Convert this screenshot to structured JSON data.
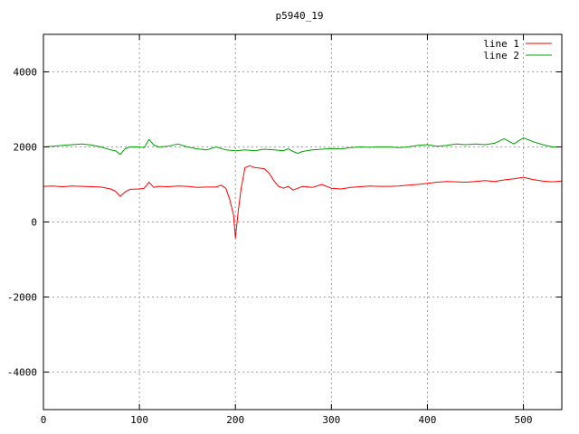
{
  "chart_data": {
    "type": "line",
    "title": "p5940_19",
    "xlabel": "",
    "ylabel": "",
    "xlim": [
      0,
      540
    ],
    "ylim": [
      -5000,
      5000
    ],
    "xticks": [
      0,
      100,
      200,
      300,
      400,
      500
    ],
    "yticks": [
      -4000,
      -2000,
      0,
      2000,
      4000
    ],
    "grid": true,
    "legend": "top-right",
    "series": [
      {
        "name": "line 1",
        "color": "#ff0000",
        "points": [
          [
            0,
            950
          ],
          [
            10,
            960
          ],
          [
            20,
            940
          ],
          [
            30,
            960
          ],
          [
            40,
            950
          ],
          [
            50,
            940
          ],
          [
            60,
            930
          ],
          [
            70,
            880
          ],
          [
            75,
            820
          ],
          [
            80,
            680
          ],
          [
            85,
            800
          ],
          [
            90,
            870
          ],
          [
            100,
            880
          ],
          [
            105,
            900
          ],
          [
            110,
            1060
          ],
          [
            115,
            920
          ],
          [
            120,
            950
          ],
          [
            130,
            940
          ],
          [
            140,
            960
          ],
          [
            150,
            950
          ],
          [
            160,
            920
          ],
          [
            170,
            930
          ],
          [
            180,
            930
          ],
          [
            185,
            980
          ],
          [
            190,
            900
          ],
          [
            194,
            600
          ],
          [
            198,
            200
          ],
          [
            200,
            -430
          ],
          [
            203,
            300
          ],
          [
            206,
            900
          ],
          [
            210,
            1450
          ],
          [
            215,
            1500
          ],
          [
            220,
            1450
          ],
          [
            230,
            1420
          ],
          [
            235,
            1300
          ],
          [
            240,
            1100
          ],
          [
            245,
            950
          ],
          [
            250,
            900
          ],
          [
            255,
            950
          ],
          [
            260,
            850
          ],
          [
            265,
            900
          ],
          [
            270,
            950
          ],
          [
            280,
            920
          ],
          [
            290,
            1000
          ],
          [
            300,
            900
          ],
          [
            310,
            880
          ],
          [
            320,
            920
          ],
          [
            330,
            940
          ],
          [
            340,
            960
          ],
          [
            350,
            950
          ],
          [
            360,
            950
          ],
          [
            370,
            960
          ],
          [
            380,
            980
          ],
          [
            390,
            1000
          ],
          [
            400,
            1030
          ],
          [
            410,
            1060
          ],
          [
            420,
            1080
          ],
          [
            430,
            1070
          ],
          [
            440,
            1060
          ],
          [
            450,
            1080
          ],
          [
            460,
            1100
          ],
          [
            470,
            1080
          ],
          [
            480,
            1120
          ],
          [
            490,
            1150
          ],
          [
            500,
            1190
          ],
          [
            510,
            1130
          ],
          [
            520,
            1090
          ],
          [
            530,
            1070
          ],
          [
            540,
            1090
          ]
        ]
      },
      {
        "name": "line 2",
        "color": "#00a000",
        "points": [
          [
            0,
            2000
          ],
          [
            10,
            2020
          ],
          [
            20,
            2040
          ],
          [
            30,
            2060
          ],
          [
            40,
            2080
          ],
          [
            50,
            2050
          ],
          [
            60,
            2000
          ],
          [
            70,
            1920
          ],
          [
            75,
            1900
          ],
          [
            80,
            1800
          ],
          [
            85,
            1950
          ],
          [
            90,
            2000
          ],
          [
            100,
            2000
          ],
          [
            105,
            1980
          ],
          [
            110,
            2200
          ],
          [
            115,
            2050
          ],
          [
            120,
            2000
          ],
          [
            130,
            2020
          ],
          [
            140,
            2080
          ],
          [
            150,
            2000
          ],
          [
            160,
            1950
          ],
          [
            170,
            1920
          ],
          [
            180,
            2000
          ],
          [
            190,
            1920
          ],
          [
            200,
            1900
          ],
          [
            210,
            1920
          ],
          [
            220,
            1900
          ],
          [
            230,
            1940
          ],
          [
            240,
            1920
          ],
          [
            250,
            1900
          ],
          [
            255,
            1950
          ],
          [
            260,
            1880
          ],
          [
            265,
            1830
          ],
          [
            270,
            1880
          ],
          [
            280,
            1920
          ],
          [
            290,
            1940
          ],
          [
            300,
            1960
          ],
          [
            310,
            1950
          ],
          [
            320,
            1980
          ],
          [
            330,
            2000
          ],
          [
            340,
            1990
          ],
          [
            350,
            2000
          ],
          [
            360,
            2000
          ],
          [
            370,
            1980
          ],
          [
            380,
            2000
          ],
          [
            390,
            2040
          ],
          [
            400,
            2060
          ],
          [
            410,
            2020
          ],
          [
            420,
            2040
          ],
          [
            430,
            2080
          ],
          [
            440,
            2060
          ],
          [
            450,
            2080
          ],
          [
            460,
            2060
          ],
          [
            470,
            2100
          ],
          [
            480,
            2220
          ],
          [
            490,
            2080
          ],
          [
            500,
            2240
          ],
          [
            510,
            2140
          ],
          [
            520,
            2060
          ],
          [
            530,
            2000
          ],
          [
            540,
            2000
          ]
        ]
      }
    ]
  }
}
